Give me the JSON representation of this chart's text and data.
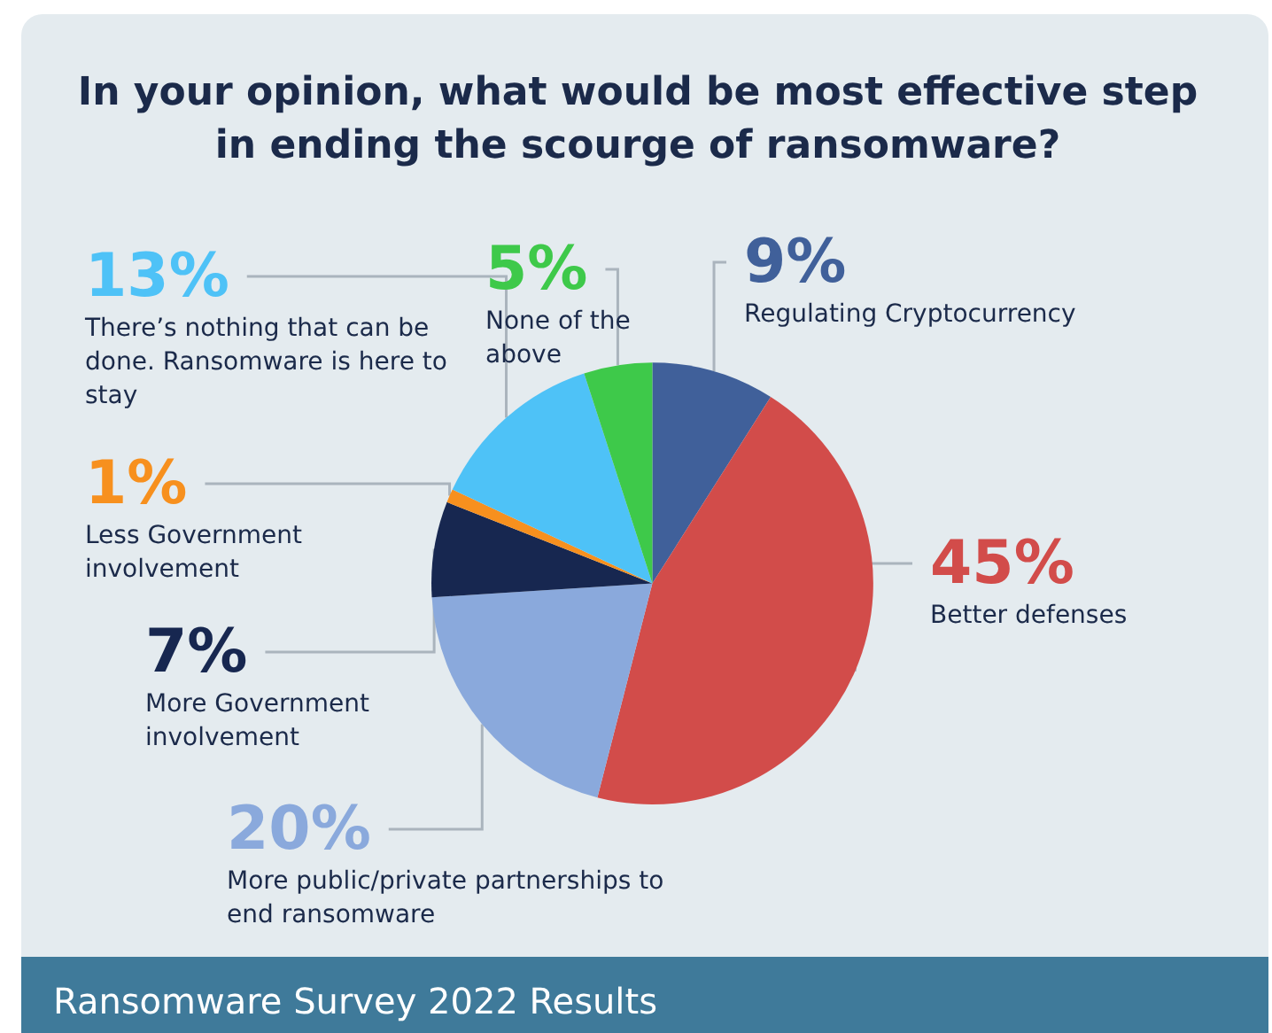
{
  "chart_data": {
    "type": "pie",
    "title": "In your opinion, what would be most effective step in ending the scourge of ransomware?",
    "categories": [
      "Regulating Cryptocurrency",
      "Better defenses",
      "More public/private partnerships to end ransomware",
      "More Government involvement",
      "Less Government involvement",
      "There’s nothing that can be done. Ransomware is here to stay",
      "None of the above"
    ],
    "values": [
      9,
      45,
      20,
      7,
      1,
      13,
      5
    ],
    "value_labels": [
      "9%",
      "45%",
      "20%",
      "7%",
      "1%",
      "13%",
      "5%"
    ],
    "colors": [
      "#40609a",
      "#d24c4a",
      "#8aa9dc",
      "#172750",
      "#f7901e",
      "#4ec2f7",
      "#3ec94a"
    ],
    "legend": false,
    "annotations": [
      "Ransomware Survey 2022 Results"
    ]
  }
}
